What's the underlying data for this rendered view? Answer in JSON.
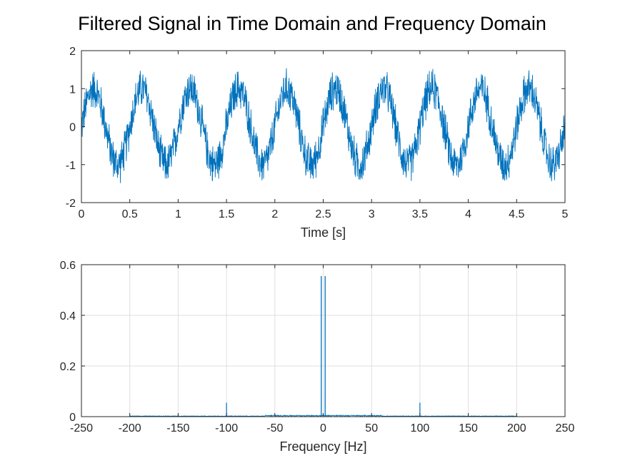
{
  "figure": {
    "title": "Filtered Signal in Time Domain and Frequency Domain"
  },
  "colors": {
    "series": "#0072BD",
    "axis": "#262626",
    "grid": "#dfdfdf",
    "background": "#ffffff"
  },
  "chart_data": [
    {
      "type": "line",
      "title": "",
      "xlabel": "Time [s]",
      "ylabel": "",
      "xlim": [
        0,
        5
      ],
      "ylim": [
        -2,
        2
      ],
      "xticks": [
        "0",
        "0.5",
        "1",
        "1.5",
        "2",
        "2.5",
        "3",
        "3.5",
        "4",
        "4.5",
        "5"
      ],
      "yticks": [
        "-2",
        "-1",
        "0",
        "1",
        "2"
      ],
      "grid": false,
      "series": [
        {
          "description": "noisy sinusoid",
          "frequency_hz": 2,
          "amplitude": 1,
          "noise_peak": 0.6,
          "x": [
            0,
            0.125,
            0.375,
            0.625,
            0.875,
            1.125,
            1.375,
            1.625,
            1.875,
            2.125,
            2.375,
            2.625,
            2.875,
            3.125,
            3.375,
            3.625,
            3.875,
            4.125,
            4.375,
            4.625,
            4.875,
            5
          ],
          "y": [
            0,
            1.1,
            -1.1,
            1.1,
            -1.1,
            1.1,
            -1.1,
            1.1,
            -1.1,
            1.1,
            -1.1,
            1.1,
            -1.1,
            1.1,
            -1.1,
            1.1,
            -1.1,
            1.1,
            -1.1,
            1.1,
            -1.1,
            0
          ]
        }
      ]
    },
    {
      "type": "line",
      "title": "",
      "xlabel": "Frequency [Hz]",
      "ylabel": "",
      "xlim": [
        -250,
        250
      ],
      "ylim": [
        0,
        0.6
      ],
      "xticks": [
        "-250",
        "-200",
        "-150",
        "-100",
        "-50",
        "0",
        "50",
        "100",
        "150",
        "200",
        "250"
      ],
      "yticks": [
        "0",
        "0.2",
        "0.4",
        "0.6"
      ],
      "grid": true,
      "series": [
        {
          "description": "magnitude spectrum",
          "x": [
            -250,
            -200,
            -100,
            -50,
            -2,
            0,
            2,
            50,
            100,
            200,
            250
          ],
          "y": [
            0,
            0.003,
            0.055,
            0.005,
            0.555,
            0.01,
            0.555,
            0.005,
            0.055,
            0.003,
            0
          ]
        }
      ]
    }
  ]
}
